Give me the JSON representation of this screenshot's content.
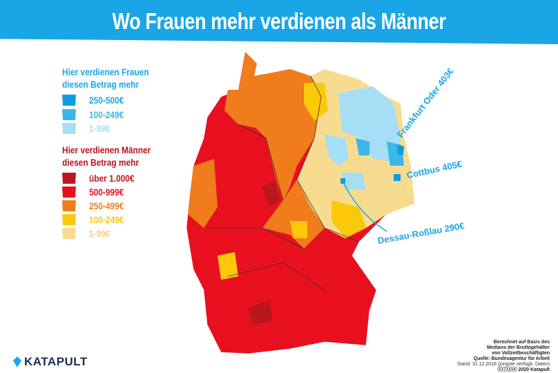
{
  "title": "Wo Frauen mehr verdienen als Männer",
  "legend": {
    "women": {
      "heading_line1": "Hier verdienen Frauen",
      "heading_line2": "diesen Betrag mehr",
      "color": "#1aa6e6",
      "items": [
        {
          "label": "250-500€",
          "color": "#0d9be0"
        },
        {
          "label": "100-249€",
          "color": "#3bb6ea"
        },
        {
          "label": "1-99€",
          "color": "#a6def5"
        }
      ]
    },
    "men": {
      "heading_line1": "Hier verdienen Männer",
      "heading_line2": "diesen Betrag mehr",
      "color": "#b5151b",
      "items": [
        {
          "label": "über 1.000€",
          "color": "#b8171d"
        },
        {
          "label": "500-999€",
          "color": "#e8101f"
        },
        {
          "label": "250-499€",
          "color": "#f07c1c"
        },
        {
          "label": "100-249€",
          "color": "#fcc80a"
        },
        {
          "label": "1-99€",
          "color": "#f7dc8f"
        }
      ]
    }
  },
  "callouts": {
    "frankfurt": "Frankfurt Oder 403€",
    "cottbus": "Cottbus 405€",
    "dessau": "Dessau-Roßlau 290€"
  },
  "source": {
    "line1": "Berechnet auf Basis des",
    "line2": "Medians der Bruttogehälter",
    "line3": "von Vollzeitbeschäftigten",
    "line4": "Quelle: Bundesagentur für Arbeit",
    "line5": "Stand: 31.12.2018 (jüngste verfügb. Daten)",
    "line6": "ⓒⓘⓢⓔ 2020 Katapult"
  },
  "logo": "KATAPULT"
}
